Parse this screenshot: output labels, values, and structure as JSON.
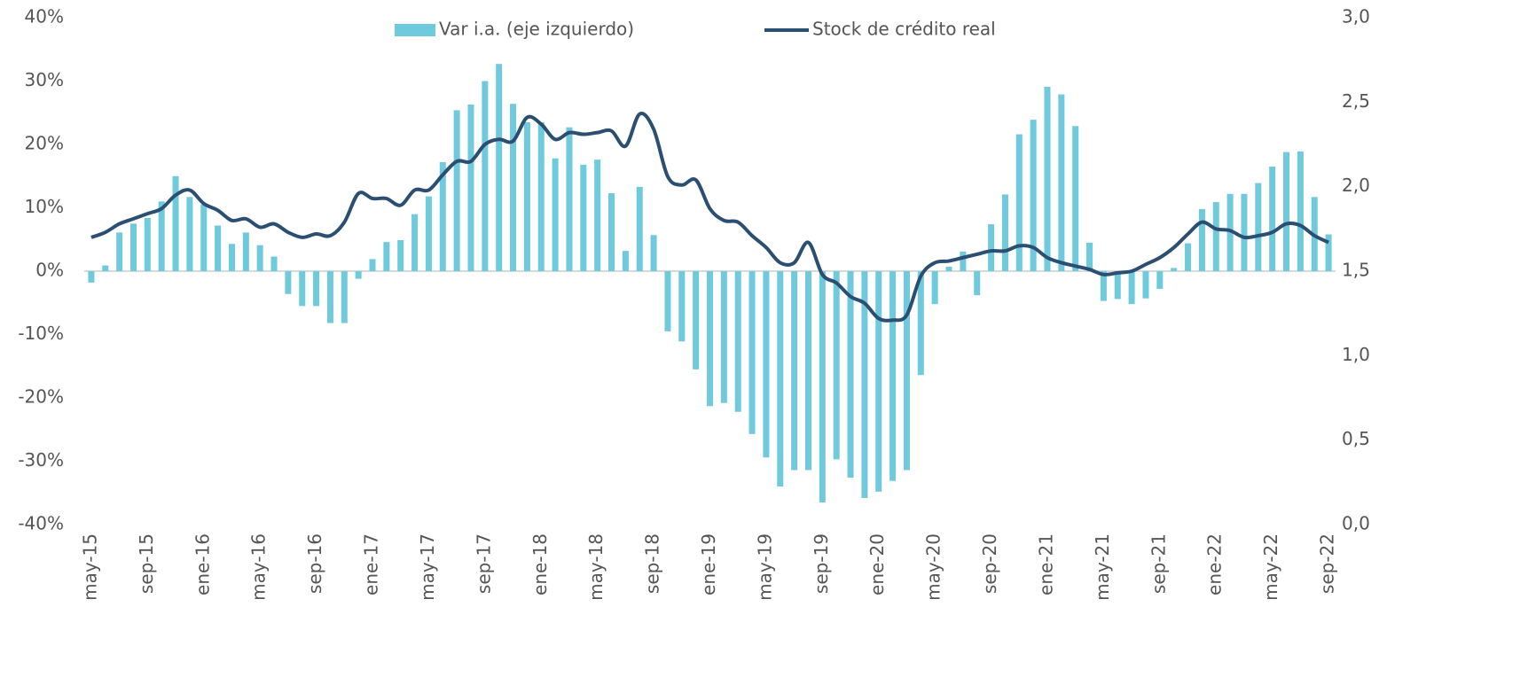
{
  "chart_data": {
    "type": "combo",
    "categories": [
      "may-15",
      null,
      null,
      null,
      "sep-15",
      null,
      null,
      null,
      "ene-16",
      null,
      null,
      null,
      "may-16",
      null,
      null,
      null,
      "sep-16",
      null,
      null,
      null,
      "ene-17",
      null,
      null,
      null,
      "may-17",
      null,
      null,
      null,
      "sep-17",
      null,
      null,
      null,
      "ene-18",
      null,
      null,
      null,
      "may-18",
      null,
      null,
      null,
      "sep-18",
      null,
      null,
      null,
      "ene-19",
      null,
      null,
      null,
      "may-19",
      null,
      null,
      null,
      "sep-19",
      null,
      null,
      null,
      "ene-20",
      null,
      null,
      null,
      "may-20",
      null,
      null,
      null,
      "sep-20",
      null,
      null,
      null,
      "ene-21",
      null,
      null,
      null,
      "may-21",
      null,
      null,
      null,
      "sep-21",
      null,
      null,
      null,
      "ene-22",
      null,
      null,
      null,
      "may-22",
      null,
      null,
      null,
      "sep-22"
    ],
    "series": [
      {
        "name": "Var i.a. (eje izquierdo)",
        "type": "bar",
        "color": "#6ecadc",
        "values": [
          -1.8,
          0.9,
          6.1,
          7.5,
          8.4,
          11.0,
          15.0,
          11.7,
          10.5,
          7.2,
          4.3,
          6.1,
          4.1,
          2.3,
          -3.6,
          -5.5,
          -5.5,
          -8.2,
          -8.2,
          -1.2,
          1.9,
          4.6,
          4.9,
          9.0,
          11.8,
          17.2,
          25.4,
          26.3,
          30.0,
          32.7,
          26.4,
          23.5,
          23.5,
          17.8,
          22.7,
          16.8,
          17.6,
          12.3,
          3.2,
          13.3,
          5.7,
          -9.5,
          -11.1,
          -15.5,
          -21.3,
          -20.8,
          -22.2,
          -25.7,
          -29.4,
          -34.0,
          -31.4,
          -31.4,
          -36.5,
          -29.7,
          -32.6,
          -35.8,
          -34.8,
          -33.1,
          -31.4,
          -16.4,
          -5.2,
          0.7,
          3.1,
          -3.8,
          7.4,
          12.1,
          21.6,
          23.9,
          29.1,
          27.9,
          22.9,
          4.5,
          -4.7,
          -4.4,
          -5.2,
          -4.3,
          -2.8,
          0.5,
          4.4,
          9.8,
          10.9,
          12.2,
          12.2,
          13.9,
          16.5,
          18.8,
          18.9,
          11.7,
          5.8
        ]
      },
      {
        "name": "Stock de crédito real",
        "type": "line",
        "axis": "y2",
        "color": "#2b4f72",
        "values": [
          1.7,
          1.73,
          1.78,
          1.81,
          1.84,
          1.87,
          1.95,
          1.98,
          1.9,
          1.86,
          1.8,
          1.81,
          1.76,
          1.78,
          1.73,
          1.7,
          1.72,
          1.71,
          1.79,
          1.96,
          1.93,
          1.93,
          1.89,
          1.98,
          1.98,
          2.07,
          2.15,
          2.15,
          2.25,
          2.28,
          2.27,
          2.41,
          2.37,
          2.28,
          2.32,
          2.31,
          2.32,
          2.33,
          2.24,
          2.43,
          2.34,
          2.06,
          2.01,
          2.04,
          1.87,
          1.8,
          1.79,
          1.71,
          1.64,
          1.55,
          1.55,
          1.67,
          1.48,
          1.43,
          1.35,
          1.31,
          1.22,
          1.21,
          1.24,
          1.47,
          1.55,
          1.56,
          1.58,
          1.6,
          1.62,
          1.62,
          1.65,
          1.64,
          1.58,
          1.55,
          1.53,
          1.51,
          1.48,
          1.49,
          1.5,
          1.54,
          1.58,
          1.64,
          1.72,
          1.79,
          1.75,
          1.74,
          1.7,
          1.71,
          1.73,
          1.78,
          1.77,
          1.71,
          1.67
        ]
      }
    ],
    "ylim": [
      -40,
      40
    ],
    "yticks": [
      {
        "value": -40,
        "label": "-40%"
      },
      {
        "value": -30,
        "label": "-30%"
      },
      {
        "value": -20,
        "label": "-20%"
      },
      {
        "value": -10,
        "label": "-10%"
      },
      {
        "value": 0,
        "label": "0%"
      },
      {
        "value": 10,
        "label": "10%"
      },
      {
        "value": 20,
        "label": "20%"
      },
      {
        "value": 30,
        "label": "30%"
      },
      {
        "value": 40,
        "label": "40%"
      }
    ],
    "y2lim": [
      0,
      3
    ],
    "y2ticks": [
      {
        "value": 0,
        "label": "0,0"
      },
      {
        "value": 0.5,
        "label": "0,5"
      },
      {
        "value": 1,
        "label": "1,0"
      },
      {
        "value": 1.5,
        "label": "1,5"
      },
      {
        "value": 2,
        "label": "2,0"
      },
      {
        "value": 2.5,
        "label": "2,5"
      },
      {
        "value": 3,
        "label": "3,0"
      }
    ],
    "legend": "top",
    "grid": false
  }
}
